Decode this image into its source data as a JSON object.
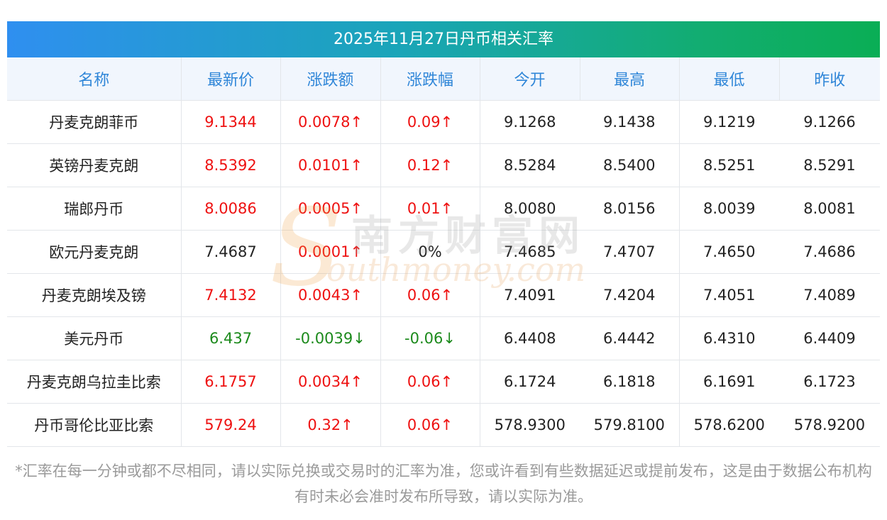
{
  "title": "2025年11月27日丹币相关汇率",
  "columns": [
    "名称",
    "最新价",
    "涨跌额",
    "涨跌幅",
    "今开",
    "最高",
    "最低",
    "昨收"
  ],
  "rows": [
    {
      "name": "丹麦克朗菲币",
      "last": "9.1344",
      "change": "0.0078",
      "change_arrow": "↑",
      "pct": "0.09",
      "pct_arrow": "↑",
      "open": "9.1268",
      "high": "9.1438",
      "low": "9.1219",
      "prev": "9.1266",
      "trend": "up"
    },
    {
      "name": "英镑丹麦克朗",
      "last": "8.5392",
      "change": "0.0101",
      "change_arrow": "↑",
      "pct": "0.12",
      "pct_arrow": "↑",
      "open": "8.5284",
      "high": "8.5400",
      "low": "8.5251",
      "prev": "8.5291",
      "trend": "up"
    },
    {
      "name": "瑞郎丹币",
      "last": "8.0086",
      "change": "0.0005",
      "change_arrow": "↑",
      "pct": "0.01",
      "pct_arrow": "↑",
      "open": "8.0080",
      "high": "8.0156",
      "low": "8.0039",
      "prev": "8.0081",
      "trend": "up"
    },
    {
      "name": "欧元丹麦克朗",
      "last": "7.4687",
      "change": "0.0001",
      "change_arrow": "↑",
      "pct": "0%",
      "pct_arrow": "",
      "open": "7.4685",
      "high": "7.4707",
      "low": "7.4650",
      "prev": "7.4686",
      "trend": "flat"
    },
    {
      "name": "丹麦克朗埃及镑",
      "last": "7.4132",
      "change": "0.0043",
      "change_arrow": "↑",
      "pct": "0.06",
      "pct_arrow": "↑",
      "open": "7.4091",
      "high": "7.4204",
      "low": "7.4051",
      "prev": "7.4089",
      "trend": "up"
    },
    {
      "name": "美元丹币",
      "last": "6.437",
      "change": "-0.0039",
      "change_arrow": "↓",
      "pct": "-0.06",
      "pct_arrow": "↓",
      "open": "6.4408",
      "high": "6.4442",
      "low": "6.4310",
      "prev": "6.4409",
      "trend": "down"
    },
    {
      "name": "丹麦克朗乌拉圭比索",
      "last": "6.1757",
      "change": "0.0034",
      "change_arrow": "↑",
      "pct": "0.06",
      "pct_arrow": "↑",
      "open": "6.1724",
      "high": "6.1818",
      "low": "6.1691",
      "prev": "6.1723",
      "trend": "up"
    },
    {
      "name": "丹币哥伦比亚比索",
      "last": "579.24",
      "change": "0.32",
      "change_arrow": "↑",
      "pct": "0.06",
      "pct_arrow": "↑",
      "open": "578.9300",
      "high": "579.8100",
      "low": "578.6200",
      "prev": "578.9200",
      "trend": "up"
    }
  ],
  "watermark": {
    "cn": "南方财富网",
    "en": "outhmoney.com",
    "letter": "S"
  },
  "footnote": "*汇率在每一分钟或都不尽相同，请以实际兑换或交易时的汇率为准，您或许看到有些数据延迟或提前发布，这是由于数据公布机构有时未必会准时发布所导致，请以实际为准。",
  "colors": {
    "up": "#ee1111",
    "down": "#1c8a1c",
    "header_text": "#2f86d8",
    "header_bg": "#f1f6fd",
    "title_gradient_start": "#2f8ff0",
    "title_gradient_end": "#0aae55"
  }
}
